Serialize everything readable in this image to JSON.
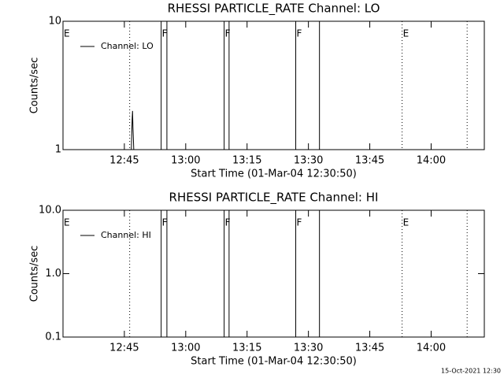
{
  "chart_data": [
    {
      "type": "line",
      "title": "RHESSI PARTICLE_RATE Channel: LO",
      "xlabel": "Start Time (01-Mar-04 12:30:50)",
      "ylabel": "Counts/sec",
      "log_y": true,
      "xlim": [
        30,
        133
      ],
      "ylim": [
        1,
        10
      ],
      "yticks": [
        1,
        10
      ],
      "xticks": [
        {
          "value": 45,
          "label": "12:45"
        },
        {
          "value": 60,
          "label": "13:00"
        },
        {
          "value": 75,
          "label": "13:15"
        },
        {
          "value": 90,
          "label": "13:30"
        },
        {
          "value": 105,
          "label": "13:45"
        },
        {
          "value": 120,
          "label": "14:00"
        }
      ],
      "series": [
        {
          "name": "Channel: LO",
          "color": "#000000",
          "x": [
            46.7,
            46.9,
            47.0,
            47.1,
            47.3
          ],
          "values": [
            1,
            1.7,
            2.0,
            1.5,
            1
          ]
        }
      ],
      "flag_lines": [
        {
          "x": 46.3,
          "style": "dotted"
        },
        {
          "x": 54.0,
          "style": "solid"
        },
        {
          "x": 55.4,
          "style": "solid"
        },
        {
          "x": 69.4,
          "style": "solid"
        },
        {
          "x": 70.6,
          "style": "solid"
        },
        {
          "x": 86.9,
          "style": "solid"
        },
        {
          "x": 92.7,
          "style": "solid"
        },
        {
          "x": 112.9,
          "style": "dotted"
        },
        {
          "x": 128.8,
          "style": "dotted"
        }
      ],
      "flag_labels": [
        {
          "x": 30,
          "text": "E"
        },
        {
          "x": 54.0,
          "text": "F"
        },
        {
          "x": 69.4,
          "text": "F"
        },
        {
          "x": 86.9,
          "text": "F"
        },
        {
          "x": 112.9,
          "text": "E"
        }
      ]
    },
    {
      "type": "line",
      "title": "RHESSI PARTICLE_RATE Channel: HI",
      "xlabel": "Start Time (01-Mar-04 12:30:50)",
      "ylabel": "Counts/sec",
      "log_y": true,
      "xlim": [
        30,
        133
      ],
      "ylim": [
        0.1,
        10
      ],
      "yticks": [
        {
          "value": 0.1,
          "label": "0.1"
        },
        {
          "value": 1,
          "label": "1.0"
        },
        {
          "value": 10,
          "label": "10.0"
        }
      ],
      "xticks": [
        {
          "value": 45,
          "label": "12:45"
        },
        {
          "value": 60,
          "label": "13:00"
        },
        {
          "value": 75,
          "label": "13:15"
        },
        {
          "value": 90,
          "label": "13:30"
        },
        {
          "value": 105,
          "label": "13:45"
        },
        {
          "value": 120,
          "label": "14:00"
        }
      ],
      "series": [
        {
          "name": "Channel: HI",
          "color": "#000000",
          "x": [],
          "values": []
        }
      ],
      "flag_lines": [
        {
          "x": 46.3,
          "style": "dotted"
        },
        {
          "x": 54.0,
          "style": "solid"
        },
        {
          "x": 55.4,
          "style": "solid"
        },
        {
          "x": 69.4,
          "style": "solid"
        },
        {
          "x": 70.6,
          "style": "solid"
        },
        {
          "x": 86.9,
          "style": "solid"
        },
        {
          "x": 92.7,
          "style": "solid"
        },
        {
          "x": 112.9,
          "style": "dotted"
        },
        {
          "x": 128.8,
          "style": "dotted"
        }
      ],
      "flag_labels": [
        {
          "x": 30,
          "text": "E"
        },
        {
          "x": 54.0,
          "text": "F"
        },
        {
          "x": 69.4,
          "text": "F"
        },
        {
          "x": 86.9,
          "text": "F"
        },
        {
          "x": 112.9,
          "text": "E"
        }
      ]
    }
  ],
  "footer": "15-Oct-2021 12:30"
}
